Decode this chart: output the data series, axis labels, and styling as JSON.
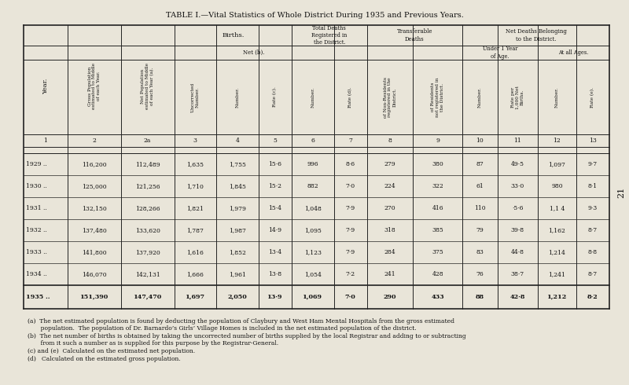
{
  "title": "TABLE I.—Vital Statistics of Whole District During 1935 and Previous Years.",
  "bg_color": "#e9e5d9",
  "col_numbers": [
    "1",
    "2",
    "2a",
    "3",
    "4",
    "5",
    "6",
    "7",
    "8",
    "9",
    "10",
    "11",
    "12",
    "13"
  ],
  "data_rows": [
    [
      "1929 ..",
      "116,200",
      "112,489",
      "1,635",
      "1,755",
      "15·6",
      "996",
      "8·6",
      "279",
      "380",
      "87",
      "49·5",
      "1,097",
      "9·7"
    ],
    [
      "1930 ..",
      "125,000",
      "121,256",
      "1,710",
      "1,845",
      "15·2",
      "882",
      "7·0",
      "224",
      "322",
      "61",
      "33·0",
      "980",
      "8·1"
    ],
    [
      "1931 ..",
      "132,150",
      "128,266",
      "1,821",
      "1,979",
      "15·4",
      "1,048",
      "7·9",
      "270",
      "416",
      "110",
      "·5·6",
      "1,1 4",
      "9·3"
    ],
    [
      "1932 ..",
      "137,480",
      "133,620",
      "1,787",
      "1,987",
      "14·9",
      "1,095",
      "7·9",
      "318",
      "385",
      "79",
      "39·8",
      "1,162",
      "8·7"
    ],
    [
      "1933 ..",
      "141,800",
      "137,920",
      "1,616",
      "1,852",
      "13·4",
      "1,123",
      "7·9",
      "284",
      "375",
      "83",
      "44·8",
      "1,214",
      "8·8"
    ],
    [
      "1934 ..",
      "146,070",
      "142,131",
      "1,666",
      "1,961",
      "13·8",
      "1,054",
      "7·2",
      "241",
      "428",
      "76",
      "38·7",
      "1,241",
      "8·7"
    ]
  ],
  "last_row": [
    "1935 ..",
    "151,390",
    "147,470",
    "1,697",
    "2,050",
    "13·9",
    "1,069",
    "7·0",
    "290",
    "433",
    "88",
    "42·8",
    "1,212",
    "8·2"
  ],
  "footnote_a": "(a)  The net estimated population is found by deducting the population of Claybury and West Ham Mental Hospitals from the gross estimated\n       population.  The population of Dr. Barnardo’s Girls’ Village Homes is included in the net estimated population of the district.",
  "footnote_b": "(b)  The net number of births is obtained by taking the uncorrected number of births supplied by the local Registrar and adding to or subtracting\n       from it such a number as is supplied for this purpose by the Registrar-General.",
  "footnote_c": "(c) and (e)  Calculated on the estimated net population.",
  "footnote_d": "(d)   Calculated on the estimated gross population."
}
